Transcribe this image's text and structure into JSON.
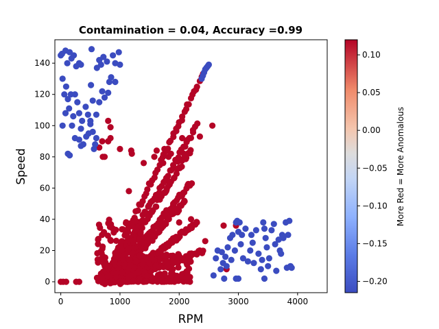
{
  "chart_data": {
    "type": "scatter",
    "title": "Contamination = 0.04, Accuracy =0.99",
    "xlabel": "RPM",
    "ylabel": "Speed",
    "xlim": [
      -100,
      4500
    ],
    "ylim": [
      -7,
      155
    ],
    "xticks": [
      0,
      1000,
      2000,
      3000,
      4000
    ],
    "yticks": [
      0,
      20,
      40,
      60,
      80,
      100,
      120,
      140
    ],
    "grid": false,
    "colorbar": {
      "label": "More Red = More Anomalous",
      "range": [
        -0.215,
        0.12
      ],
      "ticks": [
        -0.2,
        -0.15,
        -0.1,
        -0.05,
        0.0,
        0.05,
        0.1
      ],
      "tick_labels": [
        "−0.20",
        "−0.15",
        "−0.10",
        "−0.05",
        "0.00",
        "0.05",
        "0.10"
      ],
      "colormap": "coolwarm",
      "low_color": "#3b4cc0",
      "high_color": "#b40426"
    },
    "series": [
      {
        "color": "#3b4cc0",
        "points": [
          [
            0,
            145
          ],
          [
            20,
            146
          ],
          [
            80,
            148
          ],
          [
            110,
            140
          ],
          [
            150,
            147
          ],
          [
            180,
            143
          ],
          [
            220,
            145
          ],
          [
            260,
            138
          ],
          [
            310,
            140
          ],
          [
            340,
            139
          ],
          [
            520,
            149
          ],
          [
            610,
            137
          ],
          [
            650,
            142
          ],
          [
            680,
            139
          ],
          [
            720,
            144
          ],
          [
            780,
            141
          ],
          [
            880,
            145
          ],
          [
            920,
            140
          ],
          [
            980,
            147
          ],
          [
            1000,
            139
          ],
          [
            30,
            130
          ],
          [
            60,
            120
          ],
          [
            90,
            125
          ],
          [
            120,
            117
          ],
          [
            140,
            111
          ],
          [
            170,
            120
          ],
          [
            210,
            106
          ],
          [
            240,
            120
          ],
          [
            280,
            115
          ],
          [
            310,
            108
          ],
          [
            340,
            98
          ],
          [
            360,
            103
          ],
          [
            420,
            112
          ],
          [
            460,
            107
          ],
          [
            500,
            103
          ],
          [
            510,
            126
          ],
          [
            540,
            116
          ],
          [
            600,
            107
          ],
          [
            650,
            115
          ],
          [
            700,
            122
          ],
          [
            740,
            118
          ],
          [
            800,
            121
          ],
          [
            820,
            128
          ],
          [
            850,
            131
          ],
          [
            920,
            128
          ],
          [
            30,
            100
          ],
          [
            80,
            108
          ],
          [
            120,
            82
          ],
          [
            150,
            81
          ],
          [
            190,
            100
          ],
          [
            240,
            92
          ],
          [
            310,
            91
          ],
          [
            340,
            87
          ],
          [
            380,
            88
          ],
          [
            430,
            93
          ],
          [
            470,
            95
          ],
          [
            500,
            101
          ],
          [
            540,
            96
          ],
          [
            560,
            85
          ],
          [
            580,
            88
          ],
          [
            600,
            92
          ],
          [
            2380,
            130
          ],
          [
            2400,
            132
          ],
          [
            2420,
            134
          ],
          [
            2440,
            136
          ],
          [
            2460,
            137
          ],
          [
            2480,
            138
          ],
          [
            2500,
            139
          ],
          [
            2580,
            4
          ],
          [
            2620,
            15
          ],
          [
            2650,
            20
          ],
          [
            2700,
            8
          ],
          [
            2720,
            19
          ],
          [
            2740,
            12
          ],
          [
            2760,
            2
          ],
          [
            2780,
            16
          ],
          [
            2800,
            10
          ],
          [
            2820,
            22
          ],
          [
            2860,
            28
          ],
          [
            2880,
            14
          ],
          [
            2900,
            30
          ],
          [
            2940,
            20
          ],
          [
            2960,
            2
          ],
          [
            2980,
            39
          ],
          [
            3000,
            32
          ],
          [
            3020,
            38
          ],
          [
            3040,
            24
          ],
          [
            3060,
            30
          ],
          [
            3080,
            15
          ],
          [
            3120,
            34
          ],
          [
            3160,
            13
          ],
          [
            3200,
            20
          ],
          [
            3220,
            30
          ],
          [
            3240,
            25
          ],
          [
            3260,
            12
          ],
          [
            3300,
            33
          ],
          [
            3340,
            18
          ],
          [
            3380,
            8
          ],
          [
            3400,
            14
          ],
          [
            3420,
            38
          ],
          [
            3440,
            34
          ],
          [
            3460,
            28
          ],
          [
            3480,
            22
          ],
          [
            3500,
            10
          ],
          [
            3520,
            15
          ],
          [
            3560,
            33
          ],
          [
            3600,
            37
          ],
          [
            3620,
            24
          ],
          [
            3640,
            7
          ],
          [
            3680,
            27
          ],
          [
            3700,
            20
          ],
          [
            3720,
            18
          ],
          [
            3740,
            30
          ],
          [
            3760,
            28
          ],
          [
            3800,
            38
          ],
          [
            3820,
            9
          ],
          [
            3840,
            30
          ],
          [
            3860,
            39
          ],
          [
            3880,
            10
          ],
          [
            3900,
            9
          ],
          [
            2960,
            38
          ],
          [
            3440,
            2
          ],
          [
            3000,
            2
          ]
        ]
      },
      {
        "color": "#b40426",
        "points": [
          [
            0,
            0
          ],
          [
            40,
            0
          ],
          [
            90,
            0
          ],
          [
            260,
            0
          ],
          [
            310,
            0
          ],
          [
            2750,
            36
          ],
          [
            2800,
            8
          ],
          [
            2960,
            36
          ],
          [
            2560,
            100
          ],
          [
            2350,
            93
          ],
          [
            1950,
            98
          ],
          [
            2050,
            92
          ],
          [
            1750,
            85
          ],
          [
            1820,
            80
          ],
          [
            1580,
            80
          ],
          [
            1620,
            84
          ],
          [
            1400,
            76
          ],
          [
            1200,
            82
          ],
          [
            1190,
            84
          ],
          [
            840,
            92
          ],
          [
            840,
            99
          ],
          [
            800,
            103
          ],
          [
            800,
            90
          ],
          [
            1000,
            85
          ],
          [
            700,
            90
          ],
          [
            650,
            86
          ],
          [
            710,
            80
          ],
          [
            740,
            80
          ],
          [
            1050,
            0
          ],
          [
            760,
            0
          ],
          [
            2080,
            82
          ],
          [
            1860,
            82
          ],
          [
            2440,
            26
          ],
          [
            1730,
            76
          ],
          [
            1150,
            58
          ],
          [
            1780,
            58
          ],
          [
            2000,
            38
          ],
          [
            2200,
            40
          ],
          [
            2300,
            38
          ]
        ],
        "lines": [
          {
            "from": [
              700,
              0
            ],
            "to": [
              2400,
              132
            ]
          },
          {
            "from": [
              750,
              0
            ],
            "to": [
              2300,
              100
            ]
          },
          {
            "from": [
              800,
              0
            ],
            "to": [
              2200,
              85
            ]
          },
          {
            "from": [
              850,
              0
            ],
            "to": [
              2200,
              64
            ]
          },
          {
            "from": [
              900,
              0
            ],
            "to": [
              2100,
              52
            ]
          },
          {
            "from": [
              950,
              0
            ],
            "to": [
              2300,
              38
            ]
          },
          {
            "from": [
              1000,
              0
            ],
            "to": [
              1950,
              28
            ]
          },
          {
            "from": [
              1000,
              0
            ],
            "to": [
              1800,
              17
            ]
          },
          {
            "from": [
              1000,
              0
            ],
            "to": [
              2400,
              20
            ]
          }
        ],
        "clusters": [
          {
            "x": [
              600,
              1400
            ],
            "y": [
              0,
              40
            ]
          },
          {
            "x": [
              1000,
              2200
            ],
            "y": [
              0,
              18
            ]
          }
        ]
      }
    ]
  }
}
